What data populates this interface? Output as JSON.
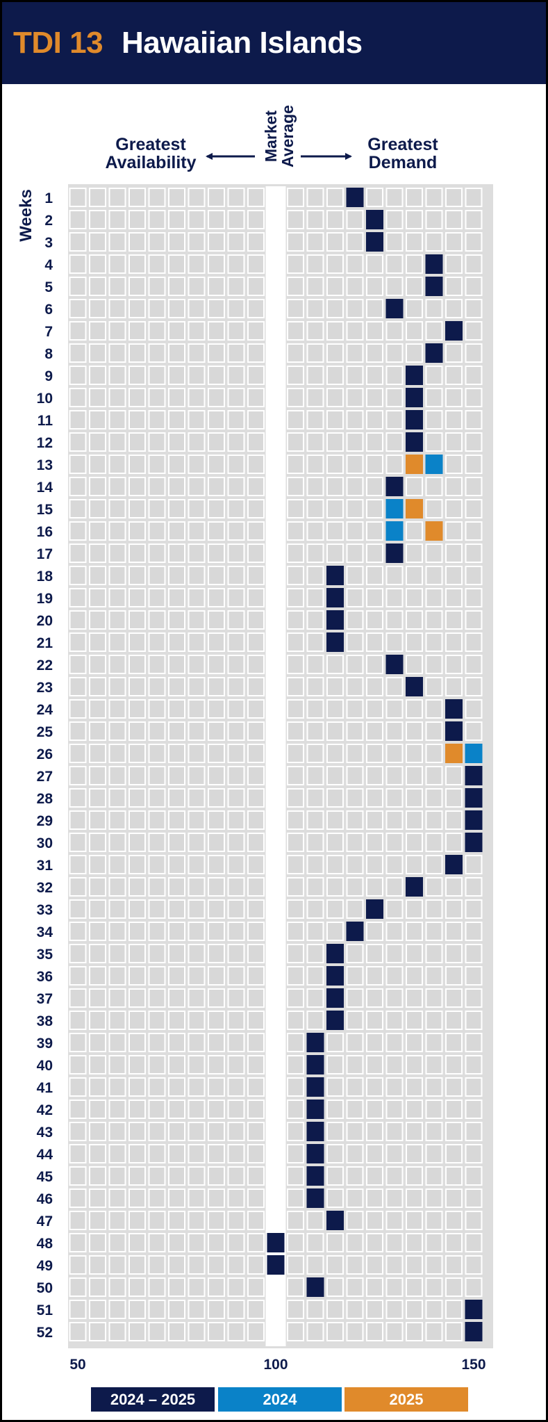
{
  "header": {
    "code": "TDI 13",
    "name": "Hawaiian Islands"
  },
  "labels": {
    "left_direction_line1": "Greatest",
    "left_direction_line2": "Availability",
    "right_direction_line1": "Greatest",
    "right_direction_line2": "Demand",
    "market_line1": "Market",
    "market_line2": "Average",
    "weeks": "Weeks"
  },
  "colors": {
    "header_bg": "#0d1a4b",
    "accent_orange": "#e08a2b",
    "navy": "#0d1a4b",
    "blue": "#0a82c8",
    "orange": "#e08a2b",
    "grid_bg": "#dddddd",
    "cell": "#d8d8d8"
  },
  "legend": [
    {
      "label": "2024 – 2025",
      "color": "#0d1a4b"
    },
    {
      "label": "2024",
      "color": "#0a82c8"
    },
    {
      "label": "2025",
      "color": "#e08a2b"
    }
  ],
  "chart_data": {
    "type": "heatmap",
    "title": "TDI 13 Hawaiian Islands",
    "x_ticks": [
      50,
      100,
      150
    ],
    "x_range": [
      50,
      150
    ],
    "market_average": 100,
    "weeks": [
      1,
      2,
      3,
      4,
      5,
      6,
      7,
      8,
      9,
      10,
      11,
      12,
      13,
      14,
      15,
      16,
      17,
      18,
      19,
      20,
      21,
      22,
      23,
      24,
      25,
      26,
      27,
      28,
      29,
      30,
      31,
      32,
      33,
      34,
      35,
      36,
      37,
      38,
      39,
      40,
      41,
      42,
      43,
      44,
      45,
      46,
      47,
      48,
      49,
      50,
      51,
      52
    ],
    "series": [
      {
        "name": "2024 – 2025",
        "color": "#0d1a4b",
        "points": [
          {
            "week": 1,
            "value": 120
          },
          {
            "week": 2,
            "value": 125
          },
          {
            "week": 3,
            "value": 125
          },
          {
            "week": 4,
            "value": 140
          },
          {
            "week": 5,
            "value": 140
          },
          {
            "week": 6,
            "value": 130
          },
          {
            "week": 7,
            "value": 145
          },
          {
            "week": 8,
            "value": 140
          },
          {
            "week": 9,
            "value": 135
          },
          {
            "week": 10,
            "value": 135
          },
          {
            "week": 11,
            "value": 135
          },
          {
            "week": 12,
            "value": 135
          },
          {
            "week": 14,
            "value": 130
          },
          {
            "week": 17,
            "value": 130
          },
          {
            "week": 18,
            "value": 115
          },
          {
            "week": 19,
            "value": 115
          },
          {
            "week": 20,
            "value": 115
          },
          {
            "week": 21,
            "value": 115
          },
          {
            "week": 22,
            "value": 130
          },
          {
            "week": 23,
            "value": 135
          },
          {
            "week": 24,
            "value": 145
          },
          {
            "week": 25,
            "value": 145
          },
          {
            "week": 27,
            "value": 150
          },
          {
            "week": 28,
            "value": 150
          },
          {
            "week": 29,
            "value": 150
          },
          {
            "week": 30,
            "value": 150
          },
          {
            "week": 31,
            "value": 145
          },
          {
            "week": 32,
            "value": 135
          },
          {
            "week": 33,
            "value": 125
          },
          {
            "week": 34,
            "value": 120
          },
          {
            "week": 35,
            "value": 115
          },
          {
            "week": 36,
            "value": 115
          },
          {
            "week": 37,
            "value": 115
          },
          {
            "week": 38,
            "value": 115
          },
          {
            "week": 39,
            "value": 110
          },
          {
            "week": 40,
            "value": 110
          },
          {
            "week": 41,
            "value": 110
          },
          {
            "week": 42,
            "value": 110
          },
          {
            "week": 43,
            "value": 110
          },
          {
            "week": 44,
            "value": 110
          },
          {
            "week": 45,
            "value": 110
          },
          {
            "week": 46,
            "value": 110
          },
          {
            "week": 47,
            "value": 115
          },
          {
            "week": 48,
            "value": 100
          },
          {
            "week": 49,
            "value": 100
          },
          {
            "week": 50,
            "value": 110
          },
          {
            "week": 51,
            "value": 150
          },
          {
            "week": 52,
            "value": 150
          }
        ]
      },
      {
        "name": "2024",
        "color": "#0a82c8",
        "points": [
          {
            "week": 13,
            "value": 140
          },
          {
            "week": 15,
            "value": 130
          },
          {
            "week": 16,
            "value": 130
          },
          {
            "week": 26,
            "value": 150
          }
        ]
      },
      {
        "name": "2025",
        "color": "#e08a2b",
        "points": [
          {
            "week": 13,
            "value": 135
          },
          {
            "week": 15,
            "value": 135
          },
          {
            "week": 16,
            "value": 140
          },
          {
            "week": 26,
            "value": 145
          }
        ]
      }
    ]
  }
}
